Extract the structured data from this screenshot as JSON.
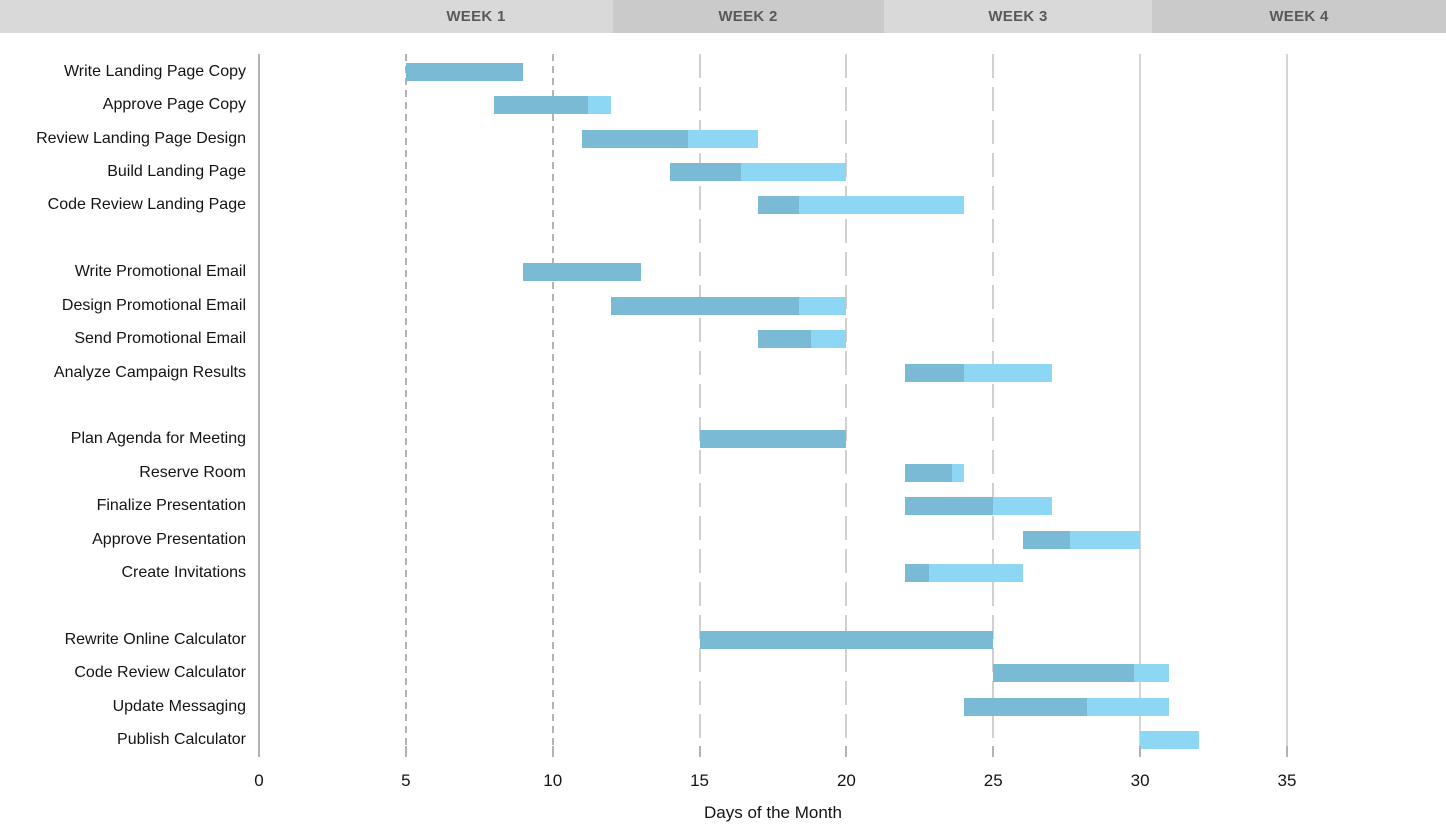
{
  "chart_data": {
    "type": "bar",
    "variant": "gantt",
    "title": "",
    "xlabel": "Days of the Month",
    "xlim": [
      0,
      35
    ],
    "xticks": [
      0,
      5,
      10,
      15,
      20,
      25,
      30,
      35
    ],
    "legend": "none",
    "grid": "vertical-only",
    "week_headers": [
      {
        "label": "WEEK 1",
        "shade": "light"
      },
      {
        "label": "WEEK 2",
        "shade": "dark"
      },
      {
        "label": "WEEK 3",
        "shade": "light"
      },
      {
        "label": "WEEK 4",
        "shade": "dark"
      }
    ],
    "colors": {
      "completed_bar": "#7abad4",
      "remaining_bar": "#8ed7f4",
      "header_light": "#d9d9d9",
      "header_dark": "#cacaca",
      "header_text": "#595959",
      "gridline_dark": "#b3b3b3",
      "gridline_light": "#d6d6d6"
    },
    "groups": [
      {
        "tasks": [
          {
            "label": "Write Landing Page Copy",
            "start": 5,
            "duration": 4,
            "end": 9,
            "percent_complete": 100
          },
          {
            "label": "Approve Page Copy",
            "start": 8,
            "duration": 4,
            "end": 12,
            "percent_complete": 80
          },
          {
            "label": "Review Landing Page Design",
            "start": 11,
            "duration": 6,
            "end": 17,
            "percent_complete": 60
          },
          {
            "label": "Build Landing Page",
            "start": 14,
            "duration": 6,
            "end": 20,
            "percent_complete": 40
          },
          {
            "label": "Code Review Landing Page",
            "start": 17,
            "duration": 7,
            "end": 24,
            "percent_complete": 20
          }
        ]
      },
      {
        "tasks": [
          {
            "label": "Write Promotional Email",
            "start": 9,
            "duration": 4,
            "end": 13,
            "percent_complete": 100
          },
          {
            "label": "Design Promotional Email",
            "start": 12,
            "duration": 8,
            "end": 20,
            "percent_complete": 80
          },
          {
            "label": "Send Promotional Email",
            "start": 17,
            "duration": 3,
            "end": 20,
            "percent_complete": 60
          },
          {
            "label": "Analyze Campaign Results",
            "start": 22,
            "duration": 5,
            "end": 27,
            "percent_complete": 40
          }
        ]
      },
      {
        "tasks": [
          {
            "label": "Plan Agenda for Meeting",
            "start": 15,
            "duration": 5,
            "end": 20,
            "percent_complete": 100
          },
          {
            "label": "Reserve Room",
            "start": 22,
            "duration": 2,
            "end": 24,
            "percent_complete": 80
          },
          {
            "label": "Finalize Presentation",
            "start": 22,
            "duration": 5,
            "end": 27,
            "percent_complete": 60
          },
          {
            "label": "Approve Presentation",
            "start": 26,
            "duration": 4,
            "end": 30,
            "percent_complete": 40
          },
          {
            "label": "Create Invitations",
            "start": 22,
            "duration": 4,
            "end": 26,
            "percent_complete": 20
          }
        ]
      },
      {
        "tasks": [
          {
            "label": "Rewrite Online Calculator",
            "start": 15,
            "duration": 10,
            "end": 25,
            "percent_complete": 100
          },
          {
            "label": "Code Review Calculator",
            "start": 25,
            "duration": 6,
            "end": 31,
            "percent_complete": 80
          },
          {
            "label": "Update Messaging",
            "start": 24,
            "duration": 7,
            "end": 31,
            "percent_complete": 60
          },
          {
            "label": "Publish Calculator",
            "start": 30,
            "duration": 2,
            "end": 32,
            "percent_complete": 0
          }
        ]
      }
    ]
  },
  "axis": {
    "title": "Days of the Month"
  }
}
